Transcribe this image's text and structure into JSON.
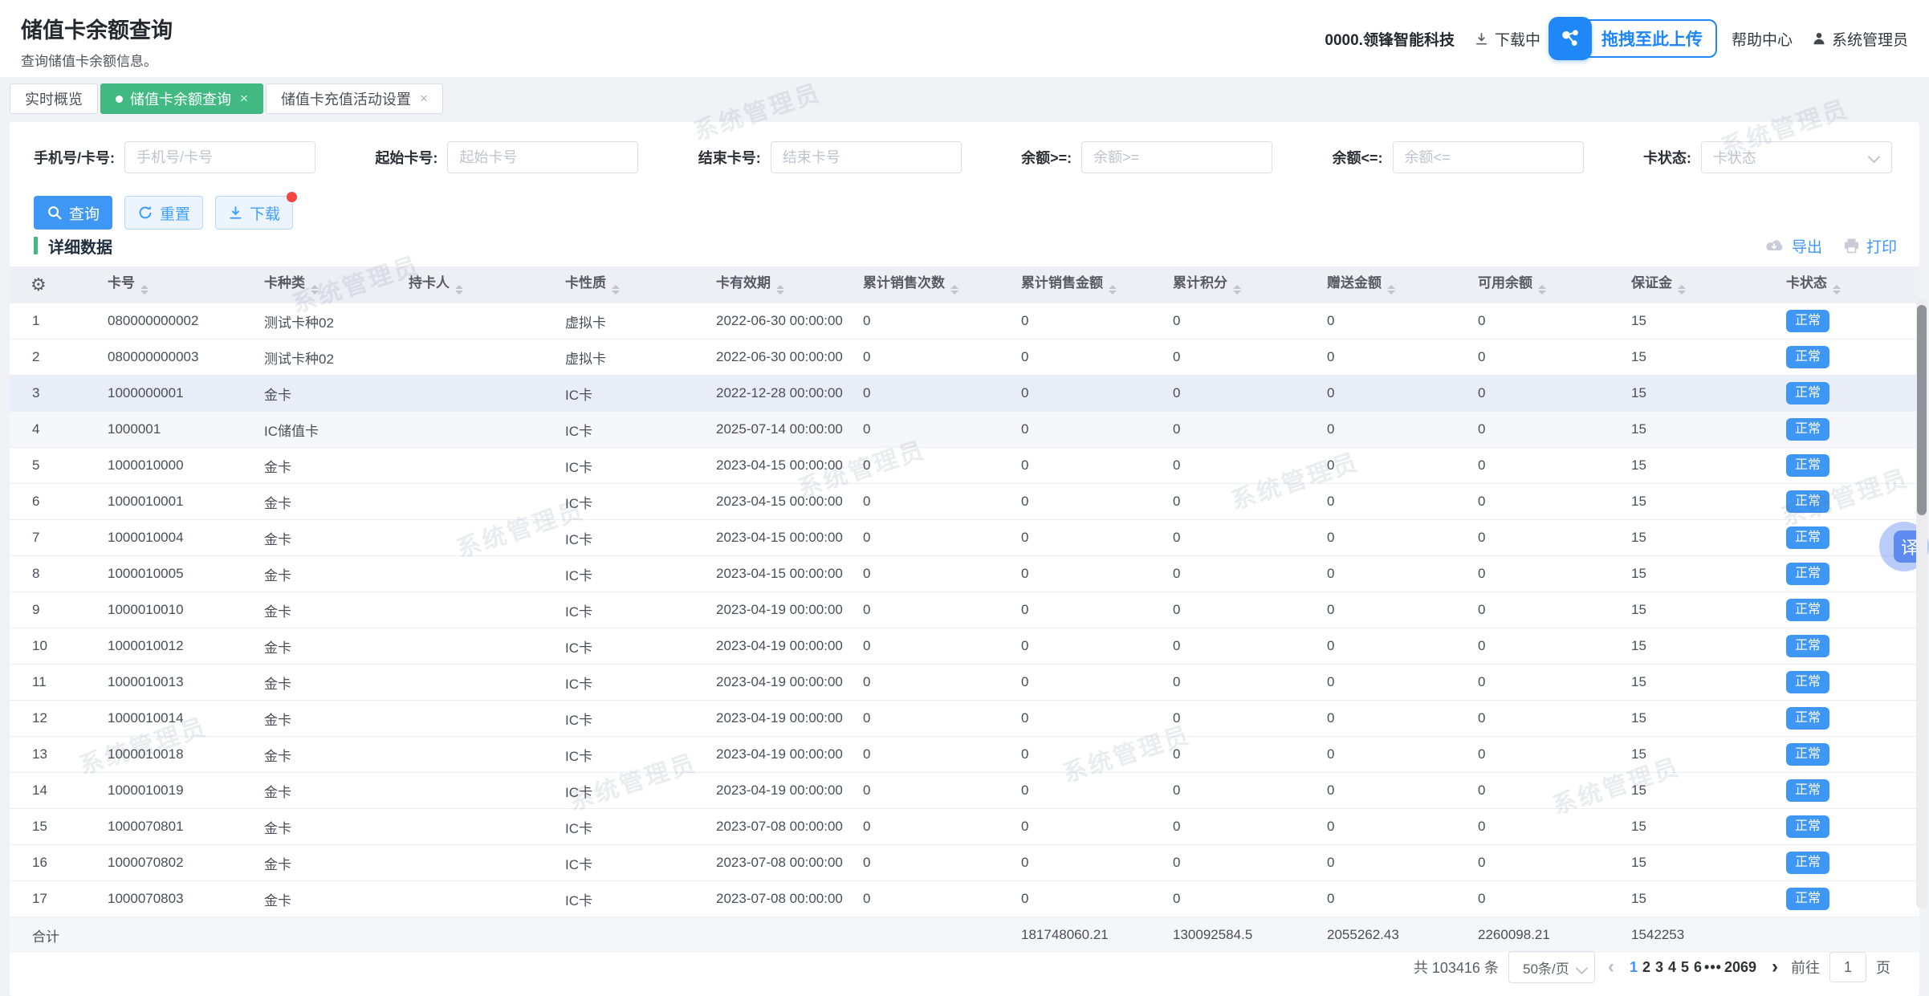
{
  "page": {
    "title": "储值卡余额查询",
    "subtitle": "查询储值卡余额信息。"
  },
  "topbar": {
    "company": "0000.领锋智能科技",
    "download_center": "下载中",
    "upload_overlay": "拖拽至此上传",
    "help": "帮助中心",
    "user": "系统管理员"
  },
  "tabs": [
    {
      "label": "实时概览",
      "active": false
    },
    {
      "label": "储值卡余额查询",
      "active": true,
      "close": "×"
    },
    {
      "label": "储值卡充值活动设置",
      "active": false,
      "close": "×"
    }
  ],
  "filters": [
    {
      "label": "手机号/卡号:",
      "placeholder": "手机号/卡号"
    },
    {
      "label": "起始卡号:",
      "placeholder": "起始卡号"
    },
    {
      "label": "结束卡号:",
      "placeholder": "结束卡号"
    },
    {
      "label": "余额>=:",
      "placeholder": "余额>="
    },
    {
      "label": "余额<=:",
      "placeholder": "余额<="
    },
    {
      "label": "卡状态:",
      "placeholder": "卡状态"
    }
  ],
  "actions": {
    "search": "查询",
    "reset": "重置",
    "download": "下载"
  },
  "section": {
    "title": "详细数据",
    "export_label": "导出",
    "print_label": "打印"
  },
  "table": {
    "columns": [
      {
        "key": "card_no",
        "label": "卡号"
      },
      {
        "key": "card_type",
        "label": "卡种类"
      },
      {
        "key": "holder",
        "label": "持卡人"
      },
      {
        "key": "nature",
        "label": "卡性质"
      },
      {
        "key": "valid",
        "label": "卡有效期"
      },
      {
        "key": "sales_count",
        "label": "累计销售次数"
      },
      {
        "key": "sales_amount",
        "label": "累计销售金额"
      },
      {
        "key": "points",
        "label": "累计积分"
      },
      {
        "key": "gift_amount",
        "label": "赠送金额"
      },
      {
        "key": "available",
        "label": "可用余额"
      },
      {
        "key": "deposit",
        "label": "保证金"
      },
      {
        "key": "status",
        "label": "卡状态"
      }
    ],
    "rows": [
      {
        "no": "1",
        "card_no": "080000000002",
        "card_type": "测试卡种02",
        "holder": "",
        "nature": "虚拟卡",
        "valid": "2022-06-30 00:00:00",
        "sales_count": "0",
        "sales_amount": "0",
        "points": "0",
        "gift_amount": "0",
        "available": "0",
        "deposit": "15",
        "status": "正常"
      },
      {
        "no": "2",
        "card_no": "080000000003",
        "card_type": "测试卡种02",
        "holder": "",
        "nature": "虚拟卡",
        "valid": "2022-06-30 00:00:00",
        "sales_count": "0",
        "sales_amount": "0",
        "points": "0",
        "gift_amount": "0",
        "available": "0",
        "deposit": "15",
        "status": "正常"
      },
      {
        "no": "3",
        "card_no": "1000000001",
        "card_type": "金卡",
        "holder": "",
        "nature": "IC卡",
        "valid": "2022-12-28 00:00:00",
        "sales_count": "0",
        "sales_amount": "0",
        "points": "0",
        "gift_amount": "0",
        "available": "0",
        "deposit": "15",
        "status": "正常"
      },
      {
        "no": "4",
        "card_no": "1000001",
        "card_type": "IC储值卡",
        "holder": "",
        "nature": "IC卡",
        "valid": "2025-07-14 00:00:00",
        "sales_count": "0",
        "sales_amount": "0",
        "points": "0",
        "gift_amount": "0",
        "available": "0",
        "deposit": "15",
        "status": "正常"
      },
      {
        "no": "5",
        "card_no": "1000010000",
        "card_type": "金卡",
        "holder": "",
        "nature": "IC卡",
        "valid": "2023-04-15 00:00:00",
        "sales_count": "0",
        "sales_amount": "0",
        "points": "0",
        "gift_amount": "0",
        "available": "0",
        "deposit": "15",
        "status": "正常"
      },
      {
        "no": "6",
        "card_no": "1000010001",
        "card_type": "金卡",
        "holder": "",
        "nature": "IC卡",
        "valid": "2023-04-15 00:00:00",
        "sales_count": "0",
        "sales_amount": "0",
        "points": "0",
        "gift_amount": "0",
        "available": "0",
        "deposit": "15",
        "status": "正常"
      },
      {
        "no": "7",
        "card_no": "1000010004",
        "card_type": "金卡",
        "holder": "",
        "nature": "IC卡",
        "valid": "2023-04-15 00:00:00",
        "sales_count": "0",
        "sales_amount": "0",
        "points": "0",
        "gift_amount": "0",
        "available": "0",
        "deposit": "15",
        "status": "正常"
      },
      {
        "no": "8",
        "card_no": "1000010005",
        "card_type": "金卡",
        "holder": "",
        "nature": "IC卡",
        "valid": "2023-04-15 00:00:00",
        "sales_count": "0",
        "sales_amount": "0",
        "points": "0",
        "gift_amount": "0",
        "available": "0",
        "deposit": "15",
        "status": "正常"
      },
      {
        "no": "9",
        "card_no": "1000010010",
        "card_type": "金卡",
        "holder": "",
        "nature": "IC卡",
        "valid": "2023-04-19 00:00:00",
        "sales_count": "0",
        "sales_amount": "0",
        "points": "0",
        "gift_amount": "0",
        "available": "0",
        "deposit": "15",
        "status": "正常"
      },
      {
        "no": "10",
        "card_no": "1000010012",
        "card_type": "金卡",
        "holder": "",
        "nature": "IC卡",
        "valid": "2023-04-19 00:00:00",
        "sales_count": "0",
        "sales_amount": "0",
        "points": "0",
        "gift_amount": "0",
        "available": "0",
        "deposit": "15",
        "status": "正常"
      },
      {
        "no": "11",
        "card_no": "1000010013",
        "card_type": "金卡",
        "holder": "",
        "nature": "IC卡",
        "valid": "2023-04-19 00:00:00",
        "sales_count": "0",
        "sales_amount": "0",
        "points": "0",
        "gift_amount": "0",
        "available": "0",
        "deposit": "15",
        "status": "正常"
      },
      {
        "no": "12",
        "card_no": "1000010014",
        "card_type": "金卡",
        "holder": "",
        "nature": "IC卡",
        "valid": "2023-04-19 00:00:00",
        "sales_count": "0",
        "sales_amount": "0",
        "points": "0",
        "gift_amount": "0",
        "available": "0",
        "deposit": "15",
        "status": "正常"
      },
      {
        "no": "13",
        "card_no": "1000010018",
        "card_type": "金卡",
        "holder": "",
        "nature": "IC卡",
        "valid": "2023-04-19 00:00:00",
        "sales_count": "0",
        "sales_amount": "0",
        "points": "0",
        "gift_amount": "0",
        "available": "0",
        "deposit": "15",
        "status": "正常"
      },
      {
        "no": "14",
        "card_no": "1000010019",
        "card_type": "金卡",
        "holder": "",
        "nature": "IC卡",
        "valid": "2023-04-19 00:00:00",
        "sales_count": "0",
        "sales_amount": "0",
        "points": "0",
        "gift_amount": "0",
        "available": "0",
        "deposit": "15",
        "status": "正常"
      },
      {
        "no": "15",
        "card_no": "1000070801",
        "card_type": "金卡",
        "holder": "",
        "nature": "IC卡",
        "valid": "2023-07-08 00:00:00",
        "sales_count": "0",
        "sales_amount": "0",
        "points": "0",
        "gift_amount": "0",
        "available": "0",
        "deposit": "15",
        "status": "正常"
      },
      {
        "no": "16",
        "card_no": "1000070802",
        "card_type": "金卡",
        "holder": "",
        "nature": "IC卡",
        "valid": "2023-07-08 00:00:00",
        "sales_count": "0",
        "sales_amount": "0",
        "points": "0",
        "gift_amount": "0",
        "available": "0",
        "deposit": "15",
        "status": "正常"
      },
      {
        "no": "17",
        "card_no": "1000070803",
        "card_type": "金卡",
        "holder": "",
        "nature": "IC卡",
        "valid": "2023-07-08 00:00:00",
        "sales_count": "0",
        "sales_amount": "0",
        "points": "0",
        "gift_amount": "0",
        "available": "0",
        "deposit": "15",
        "status": "正常"
      }
    ],
    "total": {
      "label": "合计",
      "sales_amount": "181748060.21",
      "points": "130092584.5",
      "gift_amount": "2055262.43",
      "available": "2260098.21",
      "deposit": "1542253"
    }
  },
  "pagination": {
    "total_text": "共 103416 条",
    "page_size": "50条/页",
    "prev": "‹",
    "next": "›",
    "pages": [
      "1",
      "2",
      "3",
      "4",
      "5",
      "6"
    ],
    "ellipsis": "•••",
    "last_page": "2069",
    "active_page": "1",
    "goto_prefix": "前往",
    "goto_value": "1",
    "goto_suffix": "页"
  },
  "floating": {
    "translate": "译"
  },
  "watermark": {
    "text": "系统管理员"
  },
  "colors": {
    "primary_blue": "#3e97f5",
    "tab_green": "#42b983",
    "badge_blue": "#3e97f5",
    "notify_red": "#f5453d",
    "upload_blue": "#1f87f8",
    "header_bg": "#edeff5",
    "page_bg": "#f0f2f5"
  }
}
